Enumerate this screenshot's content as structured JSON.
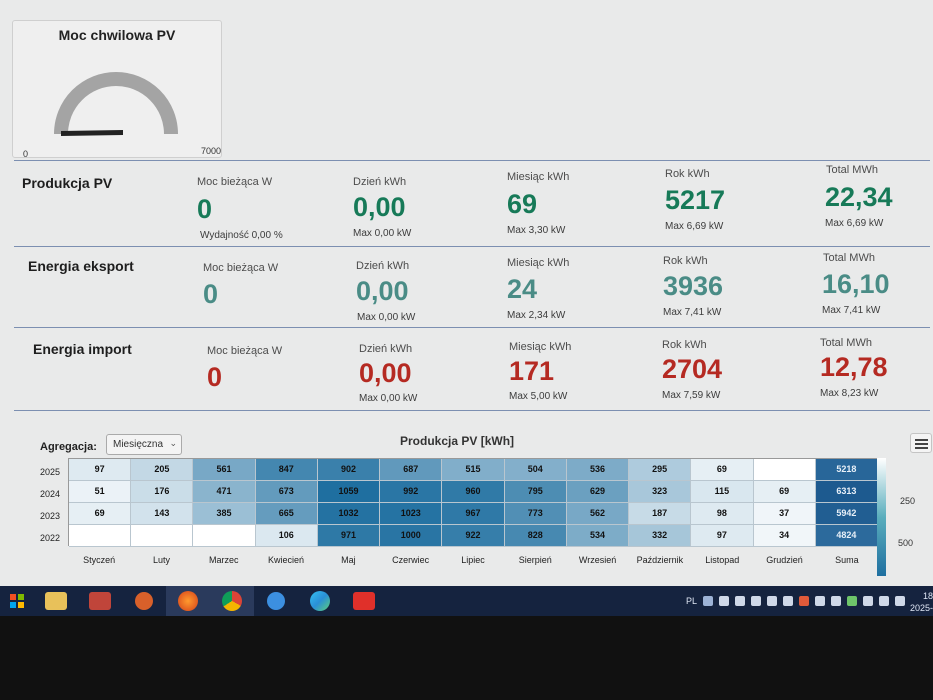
{
  "gauge": {
    "title": "Moc chwilowa PV",
    "min": "0",
    "max": "7000",
    "value": 0
  },
  "rows": [
    {
      "title": "Produkcja PV",
      "color": "#177a58",
      "moc_label": "Moc bieżąca W",
      "moc_value": "0",
      "moc_sub": "Wydajność 0,00 %",
      "dzien_label": "Dzień kWh",
      "dzien_value": "0,00",
      "dzien_sub": "Max 0,00 kW",
      "miesiac_label": "Miesiąc kWh",
      "miesiac_value": "69",
      "miesiac_sub": "Max 3,30 kW",
      "rok_label": "Rok kWh",
      "rok_value": "5217",
      "rok_sub": "Max 6,69 kW",
      "total_label": "Total MWh",
      "total_value": "22,34",
      "total_sub": "Max 6,69 kW"
    },
    {
      "title": "Energia eksport",
      "color": "#4a8c86",
      "moc_label": "Moc bieżąca W",
      "moc_value": "0",
      "dzien_label": "Dzień kWh",
      "dzien_value": "0,00",
      "dzien_sub": "Max 0,00 kW",
      "miesiac_label": "Miesiąc kWh",
      "miesiac_value": "24",
      "miesiac_sub": "Max 2,34 kW",
      "rok_label": "Rok kWh",
      "rok_value": "3936",
      "rok_sub": "Max 7,41 kW",
      "total_label": "Total MWh",
      "total_value": "16,10",
      "total_sub": "Max 7,41 kW"
    },
    {
      "title": "Energia import",
      "color": "#b52a22",
      "moc_label": "Moc bieżąca W",
      "moc_value": "0",
      "dzien_label": "Dzień kWh",
      "dzien_value": "0,00",
      "dzien_sub": "Max 0,00 kW",
      "miesiac_label": "Miesiąc kWh",
      "miesiac_value": "171",
      "miesiac_sub": "Max 5,00 kW",
      "rok_label": "Rok kWh",
      "rok_value": "2704",
      "rok_sub": "Max 7,59 kW",
      "total_label": "Total MWh",
      "total_value": "12,78",
      "total_sub": "Max 8,23 kW"
    }
  ],
  "aggregation": {
    "label": "Agregacja:",
    "selected": "Miesięczna"
  },
  "chart_data": {
    "type": "heatmap",
    "title": "Produkcja PV [kWh]",
    "x": [
      "Styczeń",
      "Luty",
      "Marzec",
      "Kwiecień",
      "Maj",
      "Czerwiec",
      "Lipiec",
      "Sierpień",
      "Wrzesień",
      "Październik",
      "Listopad",
      "Grudzień",
      "Suma"
    ],
    "y": [
      "2025",
      "2024",
      "2023",
      "2022"
    ],
    "values": [
      [
        "97",
        "205",
        "561",
        "847",
        "902",
        "687",
        "515",
        "504",
        "536",
        "295",
        "69",
        "",
        "5218"
      ],
      [
        "51",
        "176",
        "471",
        "673",
        "1059",
        "992",
        "960",
        "795",
        "629",
        "323",
        "115",
        "69",
        "6313"
      ],
      [
        "69",
        "143",
        "385",
        "665",
        "1032",
        "1023",
        "967",
        "773",
        "562",
        "187",
        "98",
        "37",
        "5942"
      ],
      [
        "",
        "",
        "",
        "106",
        "971",
        "1000",
        "922",
        "828",
        "534",
        "332",
        "97",
        "34",
        "4824"
      ]
    ],
    "legend_ticks": [
      "250",
      "500"
    ]
  },
  "taskbar": {
    "lang": "PL",
    "clock_hour": "18",
    "clock_year": "2025-",
    "apps": [
      "file-explorer-icon",
      "photo-viewer-icon",
      "media-player-icon",
      "firefox-icon",
      "chrome-icon",
      "edge-legacy-icon",
      "edge-icon",
      "media-app-icon"
    ]
  },
  "colors": {
    "green": "#177a58",
    "teal": "#4a8c86",
    "red": "#b52a22",
    "heat_low": "#ffffff",
    "heat_high": "#1f6fa0"
  }
}
